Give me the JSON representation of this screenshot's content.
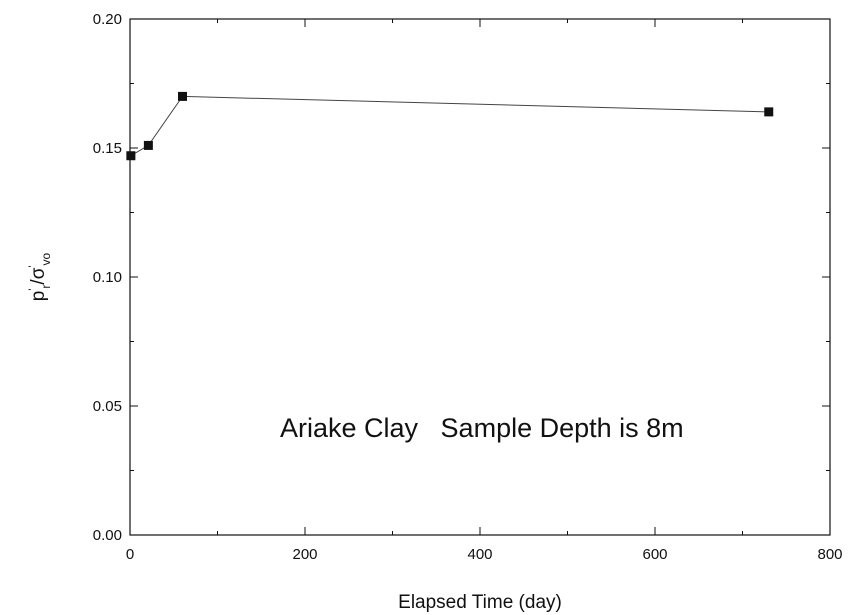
{
  "chart_data": {
    "type": "line",
    "xlabel": "Elapsed Time (day)",
    "ylabel": {
      "base": "p",
      "base_sub": "r",
      "mid": "/σ",
      "mid_sub": "vo",
      "prime": "'"
    },
    "xlim": [
      0,
      800
    ],
    "ylim": [
      0.0,
      0.2
    ],
    "x_ticks": [
      "0",
      "200",
      "400",
      "600",
      "800"
    ],
    "y_ticks": [
      "0.00",
      "0.05",
      "0.10",
      "0.15",
      "0.20"
    ],
    "grid": false,
    "annotation": "Ariake Clay   Sample Depth is 8m",
    "series": [
      {
        "marker": "square",
        "x": [
          1,
          21,
          60,
          730
        ],
        "y": [
          0.147,
          0.151,
          0.17,
          0.164
        ]
      }
    ]
  }
}
